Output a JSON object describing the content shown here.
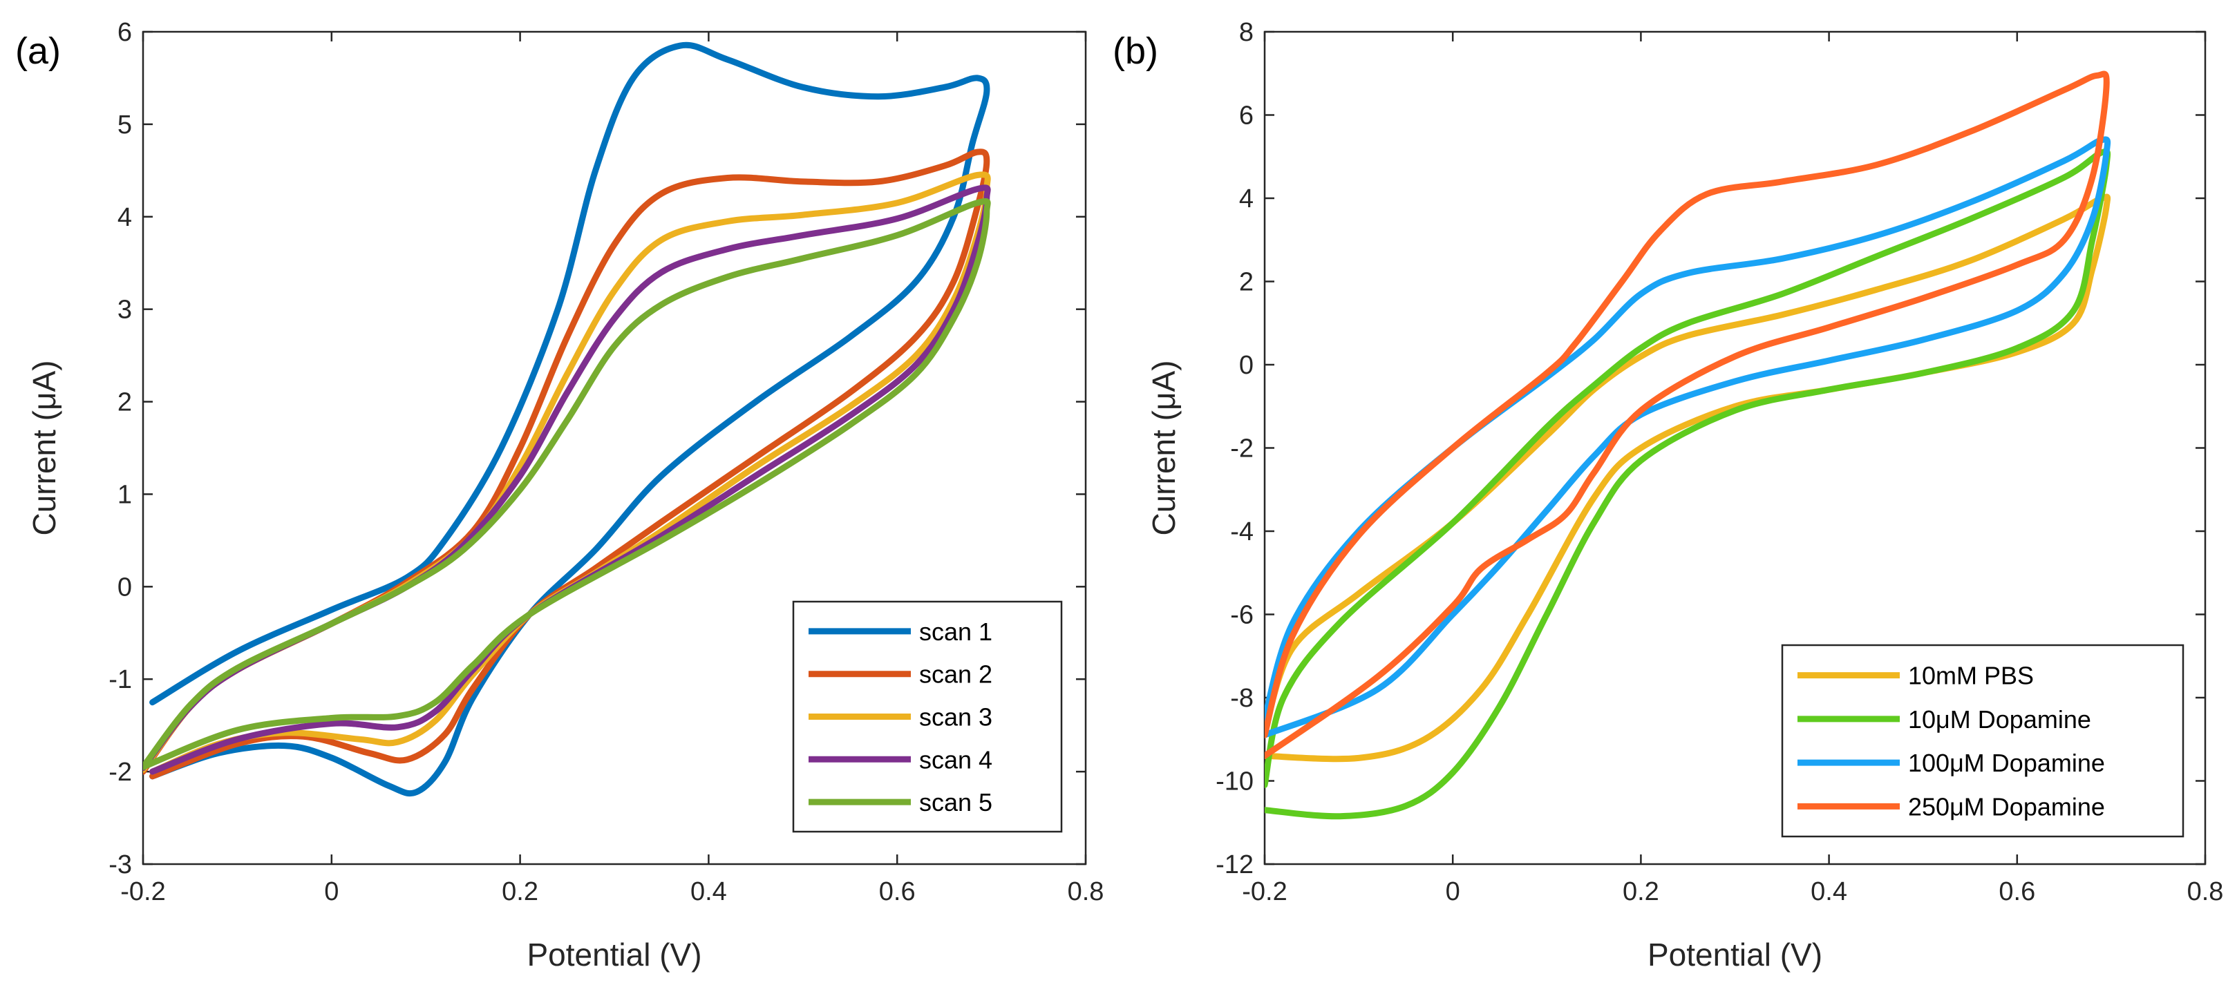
{
  "chart_data": [
    {
      "type": "line",
      "panel_label": "(a)",
      "xlabel": "Potential (V)",
      "ylabel": "Current (μA)",
      "xlim": [
        -0.2,
        0.8
      ],
      "ylim": [
        -3,
        6
      ],
      "xticks": [
        -0.2,
        0,
        0.2,
        0.4,
        0.6,
        0.8
      ],
      "yticks": [
        -3,
        -2,
        -1,
        0,
        1,
        2,
        3,
        4,
        5,
        6
      ],
      "legend_position": "bottom-right",
      "series": [
        {
          "name": "scan 1",
          "color": "#0072BD",
          "points": [
            [
              -0.19,
              -1.25
            ],
            [
              -0.1,
              -0.7
            ],
            [
              0,
              -0.25
            ],
            [
              0.08,
              0.1
            ],
            [
              0.12,
              0.5
            ],
            [
              0.18,
              1.5
            ],
            [
              0.24,
              3
            ],
            [
              0.28,
              4.5
            ],
            [
              0.32,
              5.5
            ],
            [
              0.37,
              5.85
            ],
            [
              0.42,
              5.7
            ],
            [
              0.5,
              5.4
            ],
            [
              0.58,
              5.3
            ],
            [
              0.65,
              5.4
            ],
            [
              0.685,
              5.5
            ],
            [
              0.695,
              5.35
            ],
            [
              0.68,
              4.8
            ],
            [
              0.66,
              4.0
            ],
            [
              0.62,
              3.3
            ],
            [
              0.55,
              2.7
            ],
            [
              0.45,
              2.0
            ],
            [
              0.35,
              1.2
            ],
            [
              0.28,
              0.4
            ],
            [
              0.21,
              -0.3
            ],
            [
              0.15,
              -1.2
            ],
            [
              0.12,
              -1.9
            ],
            [
              0.09,
              -2.22
            ],
            [
              0.06,
              -2.15
            ],
            [
              0,
              -1.85
            ],
            [
              -0.05,
              -1.72
            ],
            [
              -0.12,
              -1.8
            ],
            [
              -0.19,
              -2.05
            ]
          ]
        },
        {
          "name": "scan 2",
          "color": "#D95319",
          "points": [
            [
              -0.2,
              -2.0
            ],
            [
              -0.15,
              -1.3
            ],
            [
              -0.1,
              -0.9
            ],
            [
              0,
              -0.4
            ],
            [
              0.08,
              0.05
            ],
            [
              0.15,
              0.6
            ],
            [
              0.2,
              1.5
            ],
            [
              0.25,
              2.7
            ],
            [
              0.3,
              3.7
            ],
            [
              0.35,
              4.25
            ],
            [
              0.42,
              4.42
            ],
            [
              0.5,
              4.38
            ],
            [
              0.58,
              4.38
            ],
            [
              0.65,
              4.55
            ],
            [
              0.685,
              4.7
            ],
            [
              0.695,
              4.6
            ],
            [
              0.685,
              4.1
            ],
            [
              0.66,
              3.3
            ],
            [
              0.62,
              2.7
            ],
            [
              0.55,
              2.1
            ],
            [
              0.45,
              1.4
            ],
            [
              0.35,
              0.7
            ],
            [
              0.28,
              0.2
            ],
            [
              0.21,
              -0.3
            ],
            [
              0.15,
              -1.1
            ],
            [
              0.12,
              -1.6
            ],
            [
              0.08,
              -1.87
            ],
            [
              0.04,
              -1.8
            ],
            [
              -0.03,
              -1.62
            ],
            [
              -0.1,
              -1.7
            ],
            [
              -0.19,
              -2.05
            ]
          ]
        },
        {
          "name": "scan 3",
          "color": "#EDB120",
          "points": [
            [
              -0.2,
              -1.98
            ],
            [
              -0.15,
              -1.3
            ],
            [
              -0.1,
              -0.9
            ],
            [
              0,
              -0.4
            ],
            [
              0.08,
              0.02
            ],
            [
              0.15,
              0.55
            ],
            [
              0.2,
              1.3
            ],
            [
              0.25,
              2.3
            ],
            [
              0.3,
              3.2
            ],
            [
              0.35,
              3.75
            ],
            [
              0.42,
              3.95
            ],
            [
              0.5,
              4.02
            ],
            [
              0.6,
              4.15
            ],
            [
              0.685,
              4.45
            ],
            [
              0.695,
              4.3
            ],
            [
              0.685,
              3.8
            ],
            [
              0.66,
              3.1
            ],
            [
              0.62,
              2.5
            ],
            [
              0.55,
              1.95
            ],
            [
              0.45,
              1.3
            ],
            [
              0.35,
              0.6
            ],
            [
              0.28,
              0.15
            ],
            [
              0.21,
              -0.3
            ],
            [
              0.15,
              -0.95
            ],
            [
              0.11,
              -1.45
            ],
            [
              0.07,
              -1.68
            ],
            [
              0.03,
              -1.65
            ],
            [
              -0.05,
              -1.58
            ],
            [
              -0.12,
              -1.7
            ],
            [
              -0.19,
              -2.0
            ]
          ]
        },
        {
          "name": "scan 4",
          "color": "#7E2F8E",
          "points": [
            [
              -0.2,
              -1.96
            ],
            [
              -0.15,
              -1.3
            ],
            [
              -0.1,
              -0.9
            ],
            [
              0,
              -0.4
            ],
            [
              0.08,
              0.0
            ],
            [
              0.14,
              0.45
            ],
            [
              0.2,
              1.2
            ],
            [
              0.25,
              2.1
            ],
            [
              0.3,
              2.9
            ],
            [
              0.35,
              3.4
            ],
            [
              0.42,
              3.65
            ],
            [
              0.5,
              3.8
            ],
            [
              0.6,
              3.98
            ],
            [
              0.685,
              4.3
            ],
            [
              0.695,
              4.2
            ],
            [
              0.685,
              3.7
            ],
            [
              0.66,
              3.0
            ],
            [
              0.62,
              2.4
            ],
            [
              0.55,
              1.85
            ],
            [
              0.45,
              1.2
            ],
            [
              0.35,
              0.55
            ],
            [
              0.21,
              -0.3
            ],
            [
              0.15,
              -0.9
            ],
            [
              0.11,
              -1.35
            ],
            [
              0.07,
              -1.52
            ],
            [
              0,
              -1.48
            ],
            [
              -0.1,
              -1.65
            ],
            [
              -0.19,
              -2.0
            ]
          ]
        },
        {
          "name": "scan 5",
          "color": "#77AC30",
          "points": [
            [
              -0.2,
              -1.95
            ],
            [
              -0.15,
              -1.28
            ],
            [
              -0.1,
              -0.88
            ],
            [
              0,
              -0.4
            ],
            [
              0.08,
              0.0
            ],
            [
              0.14,
              0.4
            ],
            [
              0.2,
              1.05
            ],
            [
              0.25,
              1.8
            ],
            [
              0.3,
              2.6
            ],
            [
              0.35,
              3.05
            ],
            [
              0.42,
              3.35
            ],
            [
              0.5,
              3.55
            ],
            [
              0.6,
              3.8
            ],
            [
              0.685,
              4.15
            ],
            [
              0.695,
              4.05
            ],
            [
              0.685,
              3.5
            ],
            [
              0.66,
              2.9
            ],
            [
              0.62,
              2.3
            ],
            [
              0.55,
              1.75
            ],
            [
              0.45,
              1.1
            ],
            [
              0.35,
              0.5
            ],
            [
              0.21,
              -0.3
            ],
            [
              0.15,
              -0.85
            ],
            [
              0.11,
              -1.25
            ],
            [
              0.07,
              -1.4
            ],
            [
              0,
              -1.42
            ],
            [
              -0.1,
              -1.55
            ],
            [
              -0.2,
              -1.95
            ]
          ]
        }
      ]
    },
    {
      "type": "line",
      "panel_label": "(b)",
      "xlabel": "Potential (V)",
      "ylabel": "Current (μA)",
      "xlim": [
        -0.2,
        0.8
      ],
      "ylim": [
        -12,
        8
      ],
      "xticks": [
        -0.2,
        0,
        0.2,
        0.4,
        0.6,
        0.8
      ],
      "yticks": [
        -12,
        -10,
        -8,
        -6,
        -4,
        -2,
        0,
        2,
        4,
        6,
        8
      ],
      "legend_position": "bottom-right",
      "series": [
        {
          "name": "10mM PBS",
          "color": "#F0B61E",
          "points": [
            [
              -0.2,
              -8.8
            ],
            [
              -0.17,
              -6.8
            ],
            [
              -0.1,
              -5.5
            ],
            [
              0,
              -3.8
            ],
            [
              0.1,
              -1.7
            ],
            [
              0.15,
              -0.6
            ],
            [
              0.2,
              0.2
            ],
            [
              0.25,
              0.7
            ],
            [
              0.35,
              1.2
            ],
            [
              0.45,
              1.8
            ],
            [
              0.55,
              2.5
            ],
            [
              0.65,
              3.5
            ],
            [
              0.69,
              4.0
            ],
            [
              0.695,
              3.8
            ],
            [
              0.68,
              2.3
            ],
            [
              0.66,
              1.0
            ],
            [
              0.6,
              0.3
            ],
            [
              0.5,
              -0.2
            ],
            [
              0.4,
              -0.6
            ],
            [
              0.3,
              -1.0
            ],
            [
              0.2,
              -2.0
            ],
            [
              0.15,
              -3.2
            ],
            [
              0.08,
              -6.0
            ],
            [
              0.03,
              -7.8
            ],
            [
              -0.03,
              -9.0
            ],
            [
              -0.1,
              -9.45
            ],
            [
              -0.2,
              -9.4
            ]
          ]
        },
        {
          "name": "10μM Dopamine",
          "color": "#5FCB1E",
          "points": [
            [
              -0.2,
              -10.1
            ],
            [
              -0.18,
              -8.0
            ],
            [
              -0.12,
              -6.2
            ],
            [
              0,
              -3.8
            ],
            [
              0.1,
              -1.5
            ],
            [
              0.15,
              -0.5
            ],
            [
              0.2,
              0.4
            ],
            [
              0.25,
              1.0
            ],
            [
              0.35,
              1.7
            ],
            [
              0.45,
              2.6
            ],
            [
              0.55,
              3.5
            ],
            [
              0.65,
              4.5
            ],
            [
              0.69,
              5.1
            ],
            [
              0.695,
              4.8
            ],
            [
              0.68,
              3.0
            ],
            [
              0.66,
              1.3
            ],
            [
              0.6,
              0.4
            ],
            [
              0.5,
              -0.2
            ],
            [
              0.4,
              -0.6
            ],
            [
              0.3,
              -1.1
            ],
            [
              0.2,
              -2.3
            ],
            [
              0.15,
              -3.8
            ],
            [
              0.1,
              -6.0
            ],
            [
              0.05,
              -8.2
            ],
            [
              0,
              -9.8
            ],
            [
              -0.05,
              -10.6
            ],
            [
              -0.12,
              -10.85
            ],
            [
              -0.2,
              -10.7
            ]
          ]
        },
        {
          "name": "100μM Dopamine",
          "color": "#1AA3F5",
          "points": [
            [
              -0.2,
              -8.5
            ],
            [
              -0.17,
              -6.2
            ],
            [
              -0.1,
              -4.0
            ],
            [
              0,
              -2.0
            ],
            [
              0.1,
              -0.3
            ],
            [
              0.15,
              0.6
            ],
            [
              0.2,
              1.7
            ],
            [
              0.25,
              2.2
            ],
            [
              0.35,
              2.55
            ],
            [
              0.45,
              3.1
            ],
            [
              0.55,
              3.9
            ],
            [
              0.65,
              4.9
            ],
            [
              0.69,
              5.4
            ],
            [
              0.695,
              5.1
            ],
            [
              0.68,
              3.5
            ],
            [
              0.65,
              2.2
            ],
            [
              0.6,
              1.3
            ],
            [
              0.5,
              0.6
            ],
            [
              0.4,
              0.1
            ],
            [
              0.3,
              -0.4
            ],
            [
              0.2,
              -1.2
            ],
            [
              0.15,
              -2.2
            ],
            [
              0.1,
              -3.5
            ],
            [
              0.05,
              -4.8
            ],
            [
              0,
              -6.0
            ],
            [
              -0.08,
              -7.8
            ],
            [
              -0.2,
              -8.9
            ]
          ]
        },
        {
          "name": "250μM Dopamine",
          "color": "#FF6526",
          "points": [
            [
              -0.2,
              -8.9
            ],
            [
              -0.17,
              -6.5
            ],
            [
              -0.1,
              -4.1
            ],
            [
              0,
              -2.0
            ],
            [
              0.1,
              -0.2
            ],
            [
              0.13,
              0.5
            ],
            [
              0.18,
              2.0
            ],
            [
              0.22,
              3.2
            ],
            [
              0.27,
              4.1
            ],
            [
              0.35,
              4.4
            ],
            [
              0.45,
              4.8
            ],
            [
              0.55,
              5.6
            ],
            [
              0.65,
              6.6
            ],
            [
              0.685,
              6.95
            ],
            [
              0.695,
              6.7
            ],
            [
              0.68,
              4.5
            ],
            [
              0.65,
              3.0
            ],
            [
              0.6,
              2.4
            ],
            [
              0.5,
              1.6
            ],
            [
              0.4,
              0.9
            ],
            [
              0.3,
              0.2
            ],
            [
              0.2,
              -1.1
            ],
            [
              0.15,
              -2.6
            ],
            [
              0.12,
              -3.6
            ],
            [
              0.08,
              -4.2
            ],
            [
              0.03,
              -4.9
            ],
            [
              0,
              -5.8
            ],
            [
              -0.08,
              -7.5
            ],
            [
              -0.2,
              -9.4
            ]
          ]
        }
      ]
    }
  ]
}
